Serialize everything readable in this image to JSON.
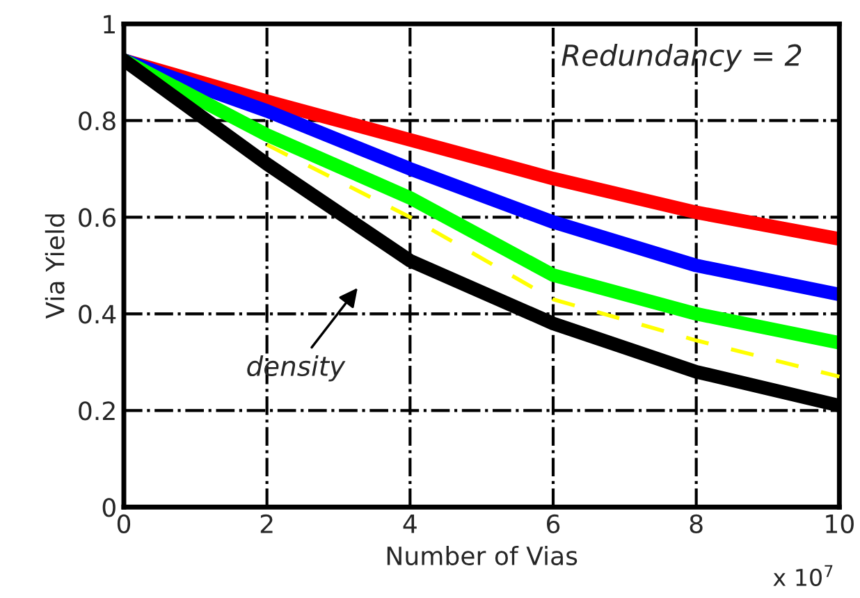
{
  "chart_data": {
    "type": "line",
    "xlabel": "Number of Vias",
    "ylabel": "Via Yield",
    "x": [
      0,
      2,
      4,
      6,
      8,
      10
    ],
    "series": [
      {
        "color": "#ff0000",
        "values": [
          0.925,
          0.84,
          0.76,
          0.68,
          0.61,
          0.555
        ]
      },
      {
        "color": "#0000ff",
        "values": [
          0.925,
          0.82,
          0.7,
          0.59,
          0.5,
          0.44
        ]
      },
      {
        "color": "#00ff00",
        "values": [
          0.925,
          0.77,
          0.64,
          0.48,
          0.4,
          0.34
        ]
      },
      {
        "color": "#ffff00",
        "values": [
          null,
          0.75,
          0.6,
          0.43,
          0.345,
          0.27
        ],
        "line_style": "dashed"
      },
      {
        "color": "#000000",
        "values": [
          0.925,
          0.71,
          0.51,
          0.38,
          0.28,
          0.21
        ]
      }
    ],
    "xlim": [
      0,
      10
    ],
    "ylim": [
      0,
      1
    ],
    "xticks": [
      0,
      2,
      4,
      6,
      8,
      10
    ],
    "yticks": [
      0,
      0.2,
      0.4,
      0.6,
      0.8,
      1
    ],
    "grid": true,
    "annotations": [
      "Redundancy = 2",
      "density",
      "x 10$^{7}$"
    ]
  }
}
